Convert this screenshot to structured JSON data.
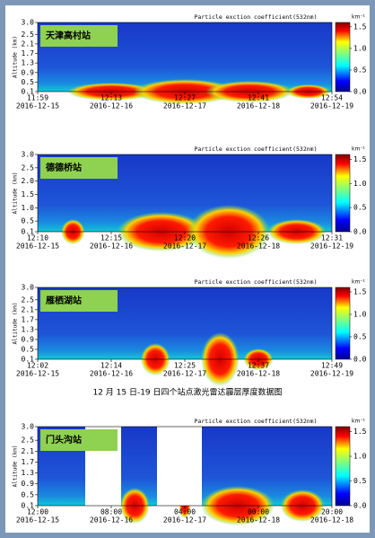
{
  "chart_data": [
    {
      "type": "heatmap",
      "station": "天津高村站",
      "title": "Particle exction coefficient(532nm)",
      "y_label": "Altitude (km)",
      "colorbar_label": "km⁻¹",
      "ylim": [
        0.1,
        3.0
      ],
      "yticks": [
        0.1,
        0.5,
        0.9,
        1.3,
        1.7,
        2.1,
        2.5,
        {
          "value": 3.0,
          "label": "3.0"
        }
      ],
      "categories": [
        "11:59",
        "12:13",
        "12:27",
        "12:41",
        "12:54"
      ],
      "dates": [
        "2016-12-15",
        "2016-12-16",
        "2016-12-17",
        "2016-12-18",
        "2016-12-19"
      ],
      "clim": [
        0,
        1.6
      ],
      "cticks": [
        {
          "value": 0,
          "label": "0.0"
        },
        0.5,
        {
          "value": 1,
          "label": "1.0"
        },
        1.5
      ]
    },
    {
      "type": "heatmap",
      "station": "德德桥站",
      "title": "Particle exction coefficient(532nm)",
      "y_label": "Altitude (km)",
      "colorbar_label": "km⁻¹",
      "ylim": [
        0.1,
        3.0
      ],
      "yticks": [
        0.1,
        0.5,
        {
          "value": 1.0,
          "label": "1.0"
        },
        1.5,
        {
          "value": 2.0,
          "label": "2.0"
        },
        2.5,
        {
          "value": 3.0,
          "label": "3.0"
        }
      ],
      "categories": [
        "12:10",
        "12:15",
        "12:20",
        "12:26",
        "12:31"
      ],
      "dates": [
        "2016-12-15",
        "2016-12-16",
        "2016-12-17",
        "2016-12-18",
        "2016-12-19"
      ],
      "clim": [
        0,
        1.6
      ],
      "cticks": [
        {
          "value": 0,
          "label": "0.0"
        },
        0.5,
        {
          "value": 1,
          "label": "1.0"
        },
        1.5
      ]
    },
    {
      "type": "heatmap",
      "station": "雁栖湖站",
      "title": "Particle exction coefficient(532nm)",
      "y_label": "Altitude (km)",
      "colorbar_label": "km⁻¹",
      "ylim": [
        0.1,
        3.0
      ],
      "yticks": [
        0.1,
        0.5,
        0.9,
        1.3,
        1.7,
        2.1,
        2.5,
        {
          "value": 3.0,
          "label": "3.0"
        }
      ],
      "categories": [
        "12:02",
        "12:14",
        "12:25",
        "12:37",
        "12:49"
      ],
      "dates": [
        "2016-12-15",
        "2016-12-16",
        "2016-12-17",
        "2016-12-18",
        "2016-12-19"
      ],
      "clim": [
        0,
        1.6
      ],
      "cticks": [
        {
          "value": 0,
          "label": "0.0"
        },
        0.5,
        {
          "value": 1,
          "label": "1.0"
        },
        1.5
      ]
    },
    {
      "type": "heatmap",
      "station": "门头沟站",
      "title": "Particle exction coefficient(532nm)",
      "y_label": "Altitude (km)",
      "colorbar_label": "km⁻¹",
      "ylim": [
        0.1,
        3.0
      ],
      "yticks": [
        0.1,
        0.5,
        0.9,
        1.3,
        1.7,
        2.1,
        2.5,
        {
          "value": 3.0,
          "label": "3.0"
        }
      ],
      "categories": [
        "12:00",
        "08:00",
        "04:00",
        "00:00",
        "20:00"
      ],
      "dates": [
        "2016-12-15",
        "2016-12-16",
        "2016-12-17",
        "2016-12-18",
        "2016-12-18"
      ],
      "clim": [
        0,
        1.6
      ],
      "cticks": [
        {
          "value": 0,
          "label": "0.0"
        },
        0.5,
        {
          "value": 1,
          "label": "1.0"
        },
        1.5
      ]
    }
  ],
  "caption": "12 月 15 日-19 日四个站点激光雷达霾层厚度数据图"
}
